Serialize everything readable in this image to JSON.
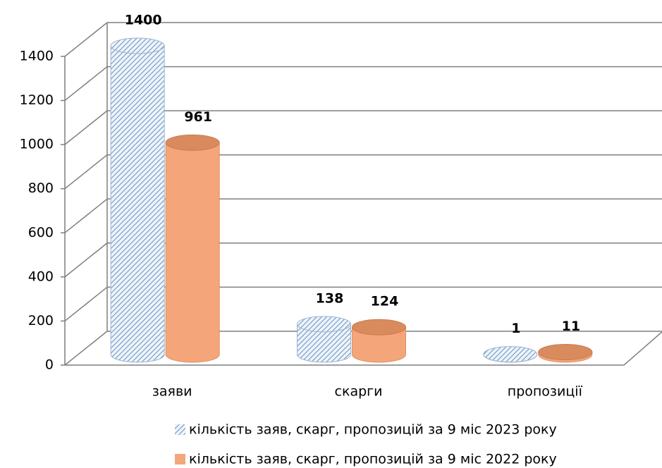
{
  "chart_data": {
    "type": "bar3d",
    "categories": [
      "заяви",
      "скарги",
      "пропозиції"
    ],
    "series": [
      {
        "name": "кількість заяв, скарг, пропозицій за 9 міс 2023 року",
        "color": "#8fb3d9",
        "pattern": "hatch",
        "values": [
          1400,
          138,
          1
        ]
      },
      {
        "name": "кількість заяв, скарг, пропозицій за 9 міс 2022 року",
        "color": "#f4a67a",
        "values": [
          961,
          124,
          11
        ]
      }
    ],
    "ylim": [
      0,
      1400
    ],
    "yticks": [
      0,
      200,
      400,
      600,
      800,
      1000,
      1200,
      1400
    ],
    "grid": true,
    "legend": "bottom"
  }
}
